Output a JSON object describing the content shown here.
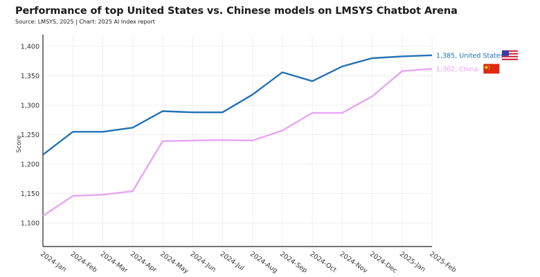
{
  "chart_data": {
    "type": "line",
    "title": "Performance of top United States vs. Chinese models on LMSYS Chatbot Arena",
    "subtitle": "Source: LMSYS, 2025 | Chart: 2025 AI Index report",
    "xlabel": "",
    "ylabel": "Score",
    "ylim": [
      1060,
      1420
    ],
    "yticks": [
      1100,
      1150,
      1200,
      1250,
      1300,
      1350,
      1400
    ],
    "ytick_labels": [
      "1,100",
      "1,150",
      "1,200",
      "1,250",
      "1,300",
      "1,350",
      "1,400"
    ],
    "grid": true,
    "categories": [
      "2024-Jan",
      "2024-Feb",
      "2024-Mar",
      "2024-Apr",
      "2024-May",
      "2024-Jun",
      "2024-Jul",
      "2024-Aug",
      "2024-Sep",
      "2024-Oct",
      "2024-Nov",
      "2024-Dec",
      "2025-Jan",
      "2025-Feb"
    ],
    "series": [
      {
        "name": "United States",
        "color": "#2171b5",
        "values": [
          1216,
          1255,
          1255,
          1262,
          1290,
          1288,
          1288,
          1318,
          1356,
          1341,
          1366,
          1380,
          1383,
          1385
        ],
        "end_label": "1,385, United States",
        "flag": "us-flag"
      },
      {
        "name": "China",
        "color": "#e9a3f5",
        "values": [
          1112,
          1146,
          1148,
          1154,
          1239,
          1240,
          1241,
          1240,
          1257,
          1287,
          1287,
          1315,
          1358,
          1362
        ],
        "end_label": "1,362, China",
        "flag": "china-flag"
      }
    ]
  }
}
